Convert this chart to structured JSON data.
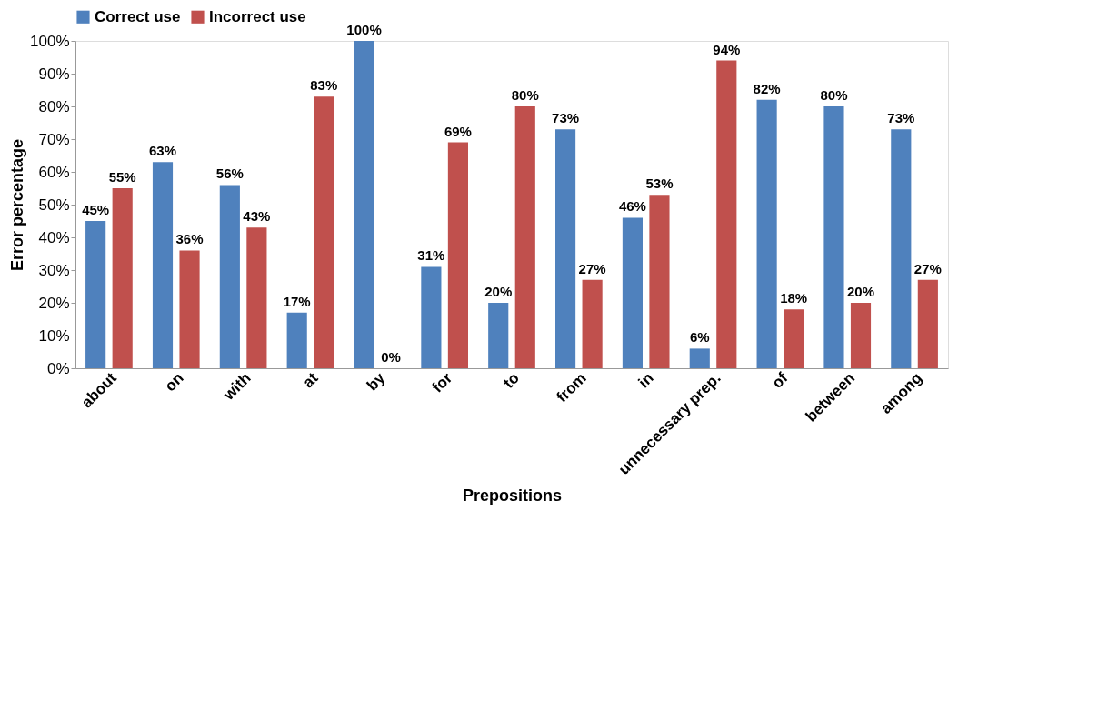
{
  "chart_data": {
    "type": "bar",
    "xlabel": "Prepositions",
    "ylabel": "Error percentage",
    "categories": [
      "about",
      "on",
      "with",
      "at",
      "by",
      "for",
      "to",
      "from",
      "in",
      "unnecessary prep.",
      "of",
      "between",
      "among"
    ],
    "series": [
      {
        "name": "Correct use",
        "color": "#4f81bd",
        "values": [
          45,
          63,
          56,
          17,
          100,
          31,
          20,
          73,
          46,
          6,
          82,
          80,
          73
        ],
        "value_labels": [
          "45%",
          "63%",
          "56%",
          "17%",
          "100%",
          "31%",
          "20%",
          "73%",
          "46%",
          "6%",
          "82%",
          "80%",
          "73%"
        ]
      },
      {
        "name": "Incorrect use",
        "color": "#c0504d",
        "values": [
          55,
          36,
          43,
          83,
          0,
          69,
          80,
          27,
          53,
          94,
          18,
          20,
          27
        ],
        "value_labels": [
          "55%",
          "36%",
          "43%",
          "83%",
          "0%",
          "69%",
          "80%",
          "27%",
          "53%",
          "94%",
          "18%",
          "20%",
          "27%"
        ]
      }
    ],
    "ylim": [
      0,
      100
    ],
    "yticks": [
      {
        "value": 0,
        "label": "0%"
      },
      {
        "value": 10,
        "label": "10%"
      },
      {
        "value": 20,
        "label": "20%"
      },
      {
        "value": 30,
        "label": "30%"
      },
      {
        "value": 40,
        "label": "40%"
      },
      {
        "value": 50,
        "label": "50%"
      },
      {
        "value": 60,
        "label": "60%"
      },
      {
        "value": 70,
        "label": "70%"
      },
      {
        "value": 80,
        "label": "80%"
      },
      {
        "value": 90,
        "label": "90%"
      },
      {
        "value": 100,
        "label": "100%"
      }
    ],
    "grid": false,
    "legend": "top"
  }
}
